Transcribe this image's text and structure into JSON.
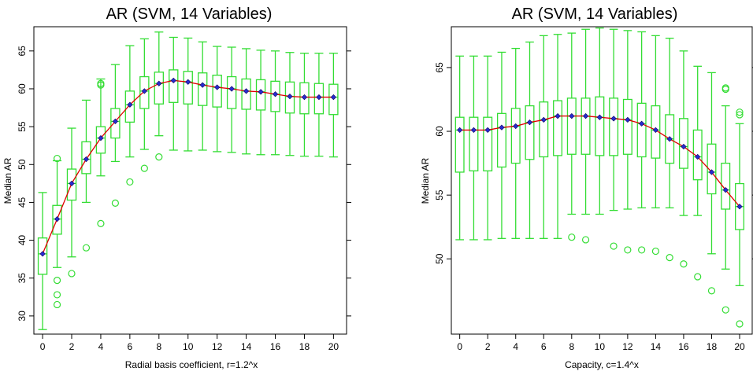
{
  "chart_data": [
    {
      "type": "box",
      "title": "AR (SVM, 14 Variables)",
      "xlabel": "Radial basis coefficient, r=1.2^x",
      "ylabel": "Median AR",
      "xlim": [
        -0.6,
        20.9
      ],
      "ylim": [
        27.6,
        68.2
      ],
      "x_ticks": [
        0,
        2,
        4,
        6,
        8,
        10,
        12,
        14,
        16,
        18,
        20
      ],
      "y_ticks": [
        30,
        35,
        40,
        45,
        50,
        55,
        60,
        65
      ],
      "x": [
        0,
        1,
        2,
        3,
        4,
        5,
        6,
        7,
        8,
        9,
        10,
        11,
        12,
        13,
        14,
        15,
        16,
        17,
        18,
        19,
        20
      ],
      "medians": [
        38.2,
        42.8,
        47.5,
        50.7,
        53.5,
        55.7,
        57.9,
        59.7,
        60.7,
        61.1,
        60.9,
        60.5,
        60.2,
        60.0,
        59.7,
        59.6,
        59.3,
        59.0,
        58.9,
        58.9,
        58.9
      ],
      "q1": [
        35.5,
        40.8,
        45.3,
        48.8,
        51.5,
        53.5,
        55.6,
        57.4,
        58.0,
        58.2,
        58.0,
        57.8,
        57.6,
        57.4,
        57.3,
        57.2,
        57.0,
        56.8,
        56.7,
        56.7,
        56.6
      ],
      "q3": [
        40.3,
        44.6,
        49.4,
        53.0,
        55.0,
        57.4,
        59.7,
        61.6,
        62.2,
        62.5,
        62.3,
        62.1,
        61.8,
        61.6,
        61.3,
        61.2,
        61.0,
        60.9,
        60.8,
        60.7,
        60.6
      ],
      "whisker_low": [
        28.2,
        36.4,
        37.8,
        45.0,
        48.5,
        50.4,
        51.0,
        52.0,
        53.8,
        51.9,
        51.8,
        51.9,
        51.7,
        51.6,
        51.4,
        51.3,
        51.3,
        51.2,
        51.1,
        51.1,
        51.0
      ],
      "whisker_high": [
        46.3,
        50.5,
        54.8,
        58.5,
        61.3,
        63.2,
        65.7,
        66.6,
        67.5,
        66.8,
        66.7,
        66.2,
        65.6,
        65.5,
        65.3,
        65.1,
        65.0,
        64.8,
        64.7,
        64.7,
        64.7
      ],
      "outliers": [
        {
          "x": 1,
          "y": 50.8
        },
        {
          "x": 1,
          "y": 34.7
        },
        {
          "x": 1,
          "y": 32.8
        },
        {
          "x": 1,
          "y": 31.5
        },
        {
          "x": 2,
          "y": 35.6
        },
        {
          "x": 3,
          "y": 39.0
        },
        {
          "x": 4,
          "y": 60.7
        },
        {
          "x": 4,
          "y": 60.5
        },
        {
          "x": 4,
          "y": 42.2
        },
        {
          "x": 5,
          "y": 44.9
        },
        {
          "x": 6,
          "y": 47.7
        },
        {
          "x": 7,
          "y": 49.5
        },
        {
          "x": 8,
          "y": 51.0
        }
      ]
    },
    {
      "type": "box",
      "title": "AR (SVM, 14 Variables)",
      "xlabel": "Capacity, c=1.4^x",
      "ylabel": "Median AR",
      "xlim": [
        -0.6,
        20.9
      ],
      "ylim": [
        44.1,
        68.2
      ],
      "x_ticks": [
        0,
        2,
        4,
        6,
        8,
        10,
        12,
        14,
        16,
        18,
        20
      ],
      "y_ticks": [
        50,
        55,
        60,
        65
      ],
      "x": [
        0,
        1,
        2,
        3,
        4,
        5,
        6,
        7,
        8,
        9,
        10,
        11,
        12,
        13,
        14,
        15,
        16,
        17,
        18,
        19,
        20
      ],
      "medians": [
        60.1,
        60.1,
        60.1,
        60.3,
        60.4,
        60.7,
        60.9,
        61.2,
        61.2,
        61.2,
        61.1,
        61.0,
        60.9,
        60.6,
        60.1,
        59.4,
        58.8,
        58.0,
        56.8,
        55.4,
        54.1
      ],
      "q1": [
        56.8,
        56.9,
        56.9,
        57.2,
        57.5,
        57.8,
        58.0,
        58.1,
        58.2,
        58.2,
        58.1,
        58.1,
        58.2,
        58.0,
        57.9,
        57.5,
        57.1,
        56.2,
        55.1,
        53.9,
        52.3
      ],
      "q3": [
        61.1,
        61.1,
        61.1,
        61.4,
        61.8,
        62.0,
        62.3,
        62.4,
        62.6,
        62.6,
        62.7,
        62.6,
        62.5,
        62.2,
        62.0,
        61.3,
        61.0,
        60.1,
        59.0,
        57.5,
        55.9
      ],
      "whisker_low": [
        51.5,
        51.5,
        51.5,
        51.6,
        51.6,
        51.6,
        51.6,
        51.6,
        53.5,
        53.5,
        53.5,
        53.8,
        53.9,
        54.0,
        54.0,
        54.0,
        53.4,
        53.4,
        50.4,
        49.2,
        47.9
      ],
      "whisker_high": [
        65.9,
        65.9,
        65.9,
        66.2,
        66.5,
        67.0,
        67.5,
        67.6,
        67.7,
        68.0,
        68.1,
        68.0,
        67.9,
        67.8,
        67.5,
        67.3,
        66.3,
        65.1,
        64.6,
        62.0,
        60.6
      ],
      "outliers": [
        {
          "x": 8,
          "y": 51.7
        },
        {
          "x": 9,
          "y": 51.5
        },
        {
          "x": 11,
          "y": 51.0
        },
        {
          "x": 12,
          "y": 50.7
        },
        {
          "x": 13,
          "y": 50.7
        },
        {
          "x": 14,
          "y": 50.6
        },
        {
          "x": 15,
          "y": 50.1
        },
        {
          "x": 16,
          "y": 49.6
        },
        {
          "x": 17,
          "y": 48.6
        },
        {
          "x": 18,
          "y": 47.5
        },
        {
          "x": 19,
          "y": 63.4
        },
        {
          "x": 19,
          "y": 63.3
        },
        {
          "x": 19,
          "y": 46.0
        },
        {
          "x": 20,
          "y": 61.5
        },
        {
          "x": 20,
          "y": 61.3
        },
        {
          "x": 20,
          "y": 44.9
        }
      ]
    }
  ]
}
